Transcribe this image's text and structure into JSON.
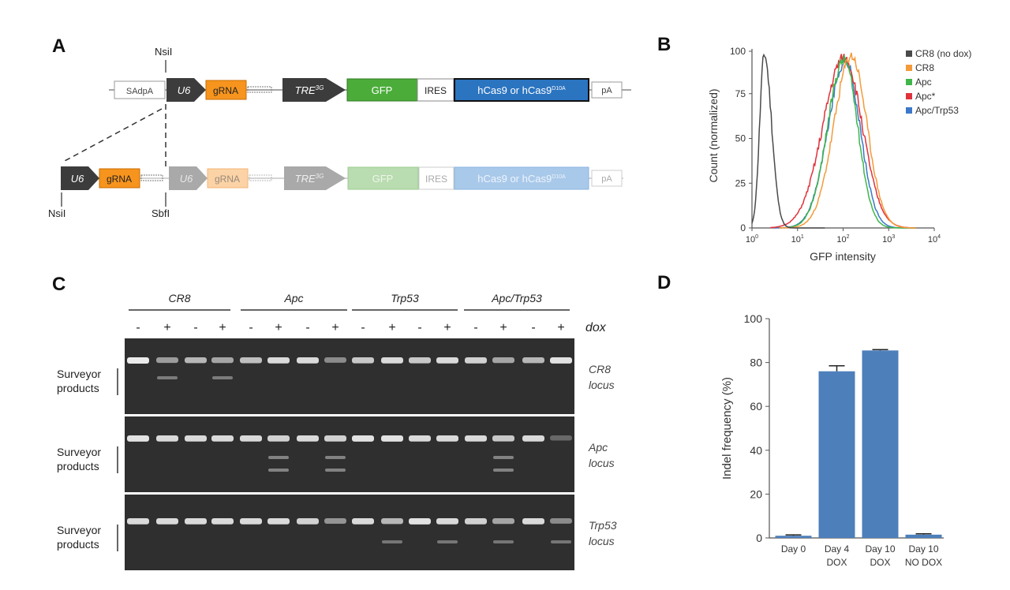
{
  "panels": {
    "a": "A",
    "b": "B",
    "c": "C",
    "d": "D"
  },
  "construct": {
    "top": {
      "site_label": "NsiI",
      "sadpa": "SAdpA",
      "u6": "U6",
      "grna": "gRNA",
      "tre_base": "TRE",
      "tre_sup": "3G",
      "gfp": "GFP",
      "ires": "IRES",
      "cas9_base": "hCas9 or hCas9",
      "cas9_sup": "D10A",
      "pa": "pA"
    },
    "bottom": {
      "u6": "U6",
      "grna": "gRNA",
      "site_left": "NsiI",
      "site_mid": "SbfI",
      "u6_faded": "U6",
      "grna_faded": "gRNA",
      "tre_base": "TRE",
      "tre_sup": "3G",
      "gfp": "GFP",
      "ires": "IRES",
      "cas9_base": "hCas9 or hCas9",
      "cas9_sup": "D10A",
      "pa": "pA"
    }
  },
  "colors": {
    "dark_arrow": "#3c3c3c",
    "grna": "#f7941d",
    "gfp": "#4bac3a",
    "cas9": "#2b74c0",
    "grey_arrow": "#a9a9a9",
    "bar": "#4d7fbb",
    "flow_cr8_nodox": "#4a4a4a",
    "flow_cr8": "#f39a3a",
    "flow_apc": "#3fb64a",
    "flow_apcstar": "#e0323c",
    "flow_apctrp53": "#3b78c9"
  },
  "flow": {
    "ylabel": "Count (normalized)",
    "xlabel": "GFP intensity",
    "y_ticks": [
      "0",
      "25",
      "50",
      "75",
      "100"
    ],
    "x_ticks": [
      {
        "base": "10",
        "exp": "0"
      },
      {
        "base": "10",
        "exp": "1"
      },
      {
        "base": "10",
        "exp": "2"
      },
      {
        "base": "10",
        "exp": "3"
      },
      {
        "base": "10",
        "exp": "4"
      }
    ],
    "legend": [
      {
        "label": "CR8 (no dox)",
        "color_key": "flow_cr8_nodox"
      },
      {
        "label": "CR8",
        "color_key": "flow_cr8"
      },
      {
        "label": "Apc",
        "color_key": "flow_apc"
      },
      {
        "label": "Apc*",
        "color_key": "flow_apcstar"
      },
      {
        "label": "Apc/Trp53",
        "color_key": "flow_apctrp53"
      }
    ]
  },
  "gel": {
    "groups": [
      "CR8",
      "Apc",
      "Trp53",
      "Apc/Trp53"
    ],
    "dox_signs": [
      "-",
      "+",
      "-",
      "+",
      "-",
      "+",
      "-",
      "+",
      "-",
      "+",
      "-",
      "+",
      "-",
      "+",
      "-",
      "+"
    ],
    "dox_label": "dox",
    "panels": [
      {
        "product_line1": "Surveyor",
        "product_line2": "products",
        "locus_line1": "CR8",
        "locus_line2": "locus"
      },
      {
        "product_line1": "Surveyor",
        "product_line2": "products",
        "locus_line1": "Apc",
        "locus_line2": "locus"
      },
      {
        "product_line1": "Surveyor",
        "product_line2": "products",
        "locus_line1": "Trp53",
        "locus_line2": "locus"
      }
    ]
  },
  "chart_data": {
    "type": "bar",
    "title": "",
    "ylabel": "Indel frequency (%)",
    "xlabel": "",
    "ylim": [
      0,
      100
    ],
    "y_ticks": [
      "0",
      "20",
      "40",
      "60",
      "80",
      "100"
    ],
    "categories": [
      {
        "line1": "Day 0",
        "line2": ""
      },
      {
        "line1": "Day 4",
        "line2": "DOX"
      },
      {
        "line1": "Day 10",
        "line2": "DOX"
      },
      {
        "line1": "Day 10",
        "line2": "NO DOX"
      }
    ],
    "values": [
      1,
      76,
      85.5,
      1.5
    ],
    "errors": [
      0.4,
      2.5,
      0.4,
      0.4
    ]
  }
}
